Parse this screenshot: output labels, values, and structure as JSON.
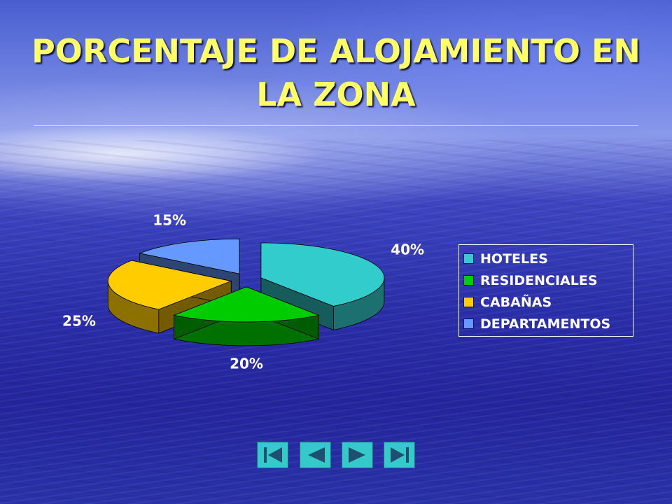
{
  "slide": {
    "title": "PORCENTAJE DE ALOJAMIENTO EN LA ZONA"
  },
  "chart_data": {
    "type": "pie",
    "title": "",
    "exploded": true,
    "three_d": true,
    "legend_position": "right",
    "slices": [
      {
        "name": "HOTELES",
        "value": 40,
        "label": "40%",
        "color": "#33cccc"
      },
      {
        "name": "RESIDENCIALES",
        "value": 20,
        "label": "20%",
        "color": "#00cc00"
      },
      {
        "name": "CABAÑAS",
        "value": 25,
        "label": "25%",
        "color": "#ffcc00"
      },
      {
        "name": "DEPARTAMENTOS",
        "value": 15,
        "label": "15%",
        "color": "#6699ff"
      }
    ]
  },
  "navigation": {
    "buttons": [
      {
        "icon": "first-slide-icon"
      },
      {
        "icon": "previous-slide-icon"
      },
      {
        "icon": "next-slide-icon"
      },
      {
        "icon": "last-slide-icon"
      }
    ]
  }
}
